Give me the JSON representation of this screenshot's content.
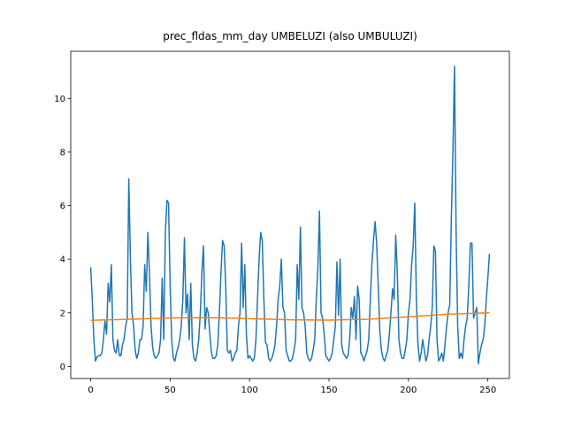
{
  "chart_data": {
    "type": "line",
    "title": "prec_fldas_mm_day UMBELUZI (also UMBULUZI)",
    "x": [
      0,
      1,
      2,
      3,
      4,
      5,
      6,
      7,
      8,
      9,
      10,
      11,
      12,
      13,
      14,
      15,
      16,
      17,
      18,
      19,
      20,
      21,
      22,
      23,
      24,
      25,
      26,
      27,
      28,
      29,
      30,
      31,
      32,
      33,
      34,
      35,
      36,
      37,
      38,
      39,
      40,
      41,
      42,
      43,
      44,
      45,
      46,
      47,
      48,
      49,
      50,
      51,
      52,
      53,
      54,
      55,
      56,
      57,
      58,
      59,
      60,
      61,
      62,
      63,
      64,
      65,
      66,
      67,
      68,
      69,
      70,
      71,
      72,
      73,
      74,
      75,
      76,
      77,
      78,
      79,
      80,
      81,
      82,
      83,
      84,
      85,
      86,
      87,
      88,
      89,
      90,
      91,
      92,
      93,
      94,
      95,
      96,
      97,
      98,
      99,
      100,
      101,
      102,
      103,
      104,
      105,
      106,
      107,
      108,
      109,
      110,
      111,
      112,
      113,
      114,
      115,
      116,
      117,
      118,
      119,
      120,
      121,
      122,
      123,
      124,
      125,
      126,
      127,
      128,
      129,
      130,
      131,
      132,
      133,
      134,
      135,
      136,
      137,
      138,
      139,
      140,
      141,
      142,
      143,
      144,
      145,
      146,
      147,
      148,
      149,
      150,
      151,
      152,
      153,
      154,
      155,
      156,
      157,
      158,
      159,
      160,
      161,
      162,
      163,
      164,
      165,
      166,
      167,
      168,
      169,
      170,
      171,
      172,
      173,
      174,
      175,
      176,
      177,
      178,
      179,
      180,
      181,
      182,
      183,
      184,
      185,
      186,
      187,
      188,
      189,
      190,
      191,
      192,
      193,
      194,
      195,
      196,
      197,
      198,
      199,
      200,
      201,
      202,
      203,
      204,
      205,
      206,
      207,
      208,
      209,
      210,
      211,
      212,
      213,
      214,
      215,
      216,
      217,
      218,
      219,
      220,
      221,
      222,
      223,
      224,
      225,
      226,
      227,
      228,
      229,
      230,
      231,
      232,
      233,
      234,
      235,
      236,
      237,
      238,
      239,
      240,
      241,
      242,
      243,
      244,
      245,
      246,
      247,
      248,
      249,
      250,
      251
    ],
    "series": [
      {
        "color": "#1f77b4",
        "values": [
          3.7,
          2.5,
          1.0,
          0.2,
          0.35,
          0.4,
          0.4,
          0.5,
          1.0,
          1.7,
          1.2,
          3.1,
          2.4,
          3.8,
          1.0,
          0.6,
          0.5,
          1.0,
          0.4,
          0.4,
          0.8,
          1.0,
          1.5,
          1.8,
          7.0,
          4.0,
          2.0,
          1.5,
          0.6,
          0.3,
          0.5,
          1.0,
          1.0,
          1.5,
          3.8,
          2.8,
          5.0,
          3.5,
          1.5,
          0.7,
          0.4,
          0.3,
          0.4,
          0.5,
          1.0,
          3.3,
          1.0,
          5.0,
          6.2,
          6.1,
          3.0,
          1.0,
          0.3,
          0.2,
          0.5,
          0.7,
          1.0,
          1.5,
          2.5,
          4.8,
          2.0,
          2.7,
          1.0,
          3.1,
          0.8,
          0.3,
          0.2,
          0.5,
          1.0,
          2.0,
          3.5,
          4.5,
          1.4,
          2.2,
          2.0,
          1.2,
          0.5,
          0.3,
          0.3,
          0.4,
          0.8,
          2.0,
          3.5,
          4.7,
          4.5,
          3.0,
          0.6,
          0.5,
          0.6,
          0.2,
          0.3,
          0.5,
          0.6,
          1.5,
          2.0,
          4.6,
          2.2,
          3.8,
          1.2,
          0.3,
          0.4,
          0.3,
          0.2,
          0.3,
          1.0,
          2.5,
          4.0,
          5.0,
          4.7,
          2.5,
          0.9,
          0.8,
          0.3,
          0.2,
          0.3,
          0.5,
          0.8,
          1.5,
          2.5,
          3.0,
          4.0,
          2.2,
          2.0,
          0.6,
          0.4,
          0.2,
          0.2,
          0.3,
          0.6,
          1.0,
          3.8,
          2.5,
          5.2,
          2.2,
          2.0,
          1.5,
          0.5,
          0.3,
          0.2,
          0.3,
          0.6,
          1.0,
          2.5,
          3.7,
          5.8,
          2.0,
          1.8,
          1.2,
          0.4,
          0.3,
          0.2,
          0.3,
          0.5,
          1.0,
          1.5,
          3.9,
          1.9,
          4.0,
          0.8,
          0.5,
          0.4,
          0.3,
          0.4,
          1.0,
          2.2,
          1.8,
          2.6,
          1.0,
          3.0,
          2.5,
          0.5,
          0.4,
          0.2,
          0.4,
          0.6,
          1.0,
          2.5,
          3.8,
          4.7,
          5.4,
          4.6,
          3.0,
          1.3,
          0.6,
          0.3,
          0.2,
          0.4,
          0.6,
          1.2,
          2.0,
          2.9,
          2.5,
          4.9,
          3.5,
          1.0,
          0.5,
          0.3,
          0.3,
          0.6,
          1.0,
          2.0,
          2.5,
          3.8,
          4.5,
          6.1,
          2.5,
          0.8,
          0.2,
          0.5,
          1.0,
          0.6,
          0.2,
          0.4,
          1.0,
          1.5,
          2.2,
          4.5,
          4.3,
          1.0,
          0.2,
          0.3,
          0.5,
          0.2,
          0.8,
          1.5,
          2.0,
          2.3,
          5.5,
          8.0,
          11.2,
          5.0,
          1.5,
          0.3,
          0.5,
          0.3,
          1.0,
          1.5,
          1.8,
          3.0,
          4.6,
          4.6,
          1.8,
          2.0,
          2.2,
          0.1,
          0.5,
          0.8,
          1.0,
          1.5,
          2.5,
          3.3,
          4.2
        ]
      },
      {
        "color": "#ff7f0e",
        "x": [
          0,
          25,
          50,
          75,
          100,
          125,
          150,
          175,
          200,
          225,
          251
        ],
        "values": [
          1.72,
          1.76,
          1.81,
          1.82,
          1.78,
          1.74,
          1.73,
          1.76,
          1.85,
          1.95,
          2.0
        ]
      }
    ],
    "xlim": [
      -12.55,
      263.55
    ],
    "ylim": [
      -0.45,
      11.76
    ],
    "xticks": [
      0,
      50,
      100,
      150,
      200,
      250
    ],
    "yticks": [
      0,
      2,
      4,
      6,
      8,
      10
    ],
    "grid": false
  }
}
